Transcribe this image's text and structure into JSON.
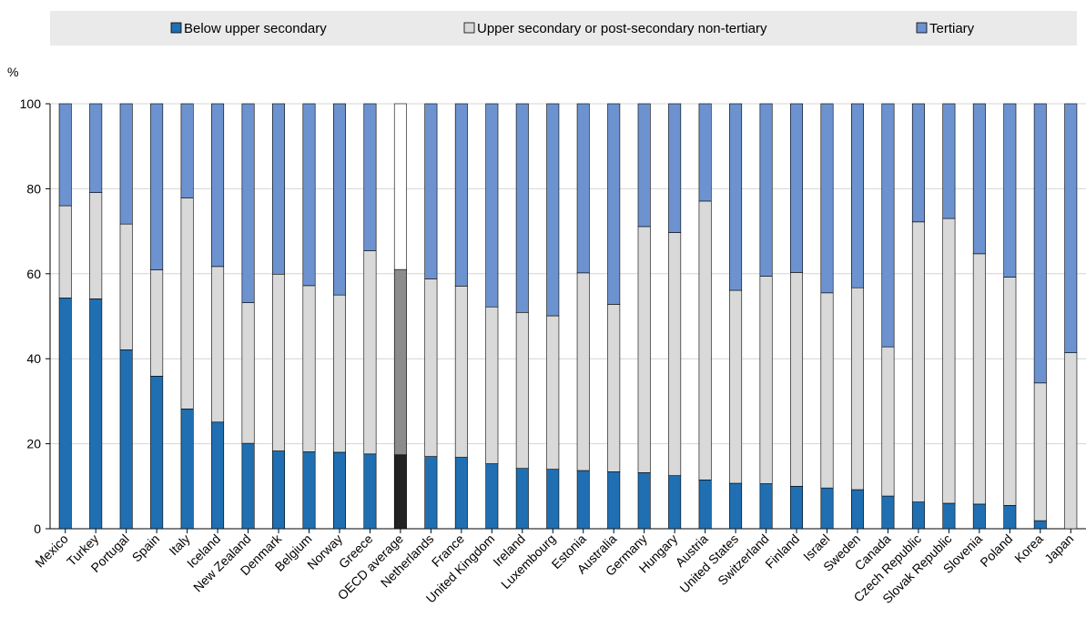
{
  "chart_data": {
    "type": "bar",
    "stacked": true,
    "ylabel": "%",
    "ylim": [
      0,
      100
    ],
    "yticks": [
      0,
      20,
      40,
      60,
      80,
      100
    ],
    "grid": true,
    "legend_position": "top",
    "colors": {
      "Below upper secondary": "#1f6fb2",
      "Upper secondary or post-secondary non-tertiary": "#d9d9d9",
      "Tertiary": "#6c93cf",
      "highlight_below": "#222222",
      "highlight_upper": "#8c8c8c",
      "highlight_tertiary": "#ffffff",
      "legend_bg": "#eaeaea"
    },
    "highlight_category": "OECD average",
    "categories": [
      "Mexico",
      "Turkey",
      "Portugal",
      "Spain",
      "Italy",
      "Iceland",
      "New Zealand",
      "Denmark",
      "Belgium",
      "Norway",
      "Greece",
      "OECD average",
      "Netherlands",
      "France",
      "United Kingdom",
      "Ireland",
      "Luxembourg",
      "Estonia",
      "Australia",
      "Germany",
      "Hungary",
      "Austria",
      "United States",
      "Switzerland",
      "Finland",
      "Israel",
      "Sweden",
      "Canada",
      "Czech Republic",
      "Slovak Republic",
      "Slovenia",
      "Poland",
      "Korea",
      "Japan"
    ],
    "series": [
      {
        "name": "Below upper secondary",
        "values": [
          54.3,
          54.1,
          42.1,
          35.9,
          28.2,
          25.1,
          20.1,
          18.3,
          18.1,
          18.0,
          17.6,
          17.4,
          17.0,
          16.8,
          15.3,
          14.2,
          14.0,
          13.7,
          13.4,
          13.2,
          12.5,
          11.5,
          10.7,
          10.6,
          10.0,
          9.6,
          9.2,
          7.7,
          6.3,
          6.0,
          5.8,
          5.5,
          1.9,
          0
        ]
      },
      {
        "name": "Upper secondary or post-secondary non-tertiary",
        "values": [
          21.7,
          25.0,
          29.6,
          25.0,
          49.6,
          36.6,
          33.1,
          41.6,
          39.1,
          37.0,
          47.8,
          43.6,
          41.8,
          40.3,
          36.9,
          36.7,
          36.1,
          46.5,
          39.4,
          57.9,
          57.2,
          65.6,
          45.4,
          48.8,
          50.3,
          45.9,
          47.5,
          35.1,
          65.9,
          67.0,
          58.9,
          53.7,
          32.4,
          41.4
        ]
      },
      {
        "name": "Tertiary",
        "values": [
          24.0,
          20.9,
          28.3,
          39.1,
          22.2,
          38.3,
          46.8,
          40.1,
          42.8,
          45.0,
          34.6,
          39.0,
          41.2,
          42.9,
          47.8,
          49.1,
          49.9,
          39.8,
          47.2,
          28.9,
          30.3,
          22.9,
          43.9,
          40.6,
          39.7,
          44.5,
          43.3,
          57.2,
          27.8,
          27.0,
          35.3,
          40.8,
          65.7,
          58.6
        ]
      }
    ]
  }
}
